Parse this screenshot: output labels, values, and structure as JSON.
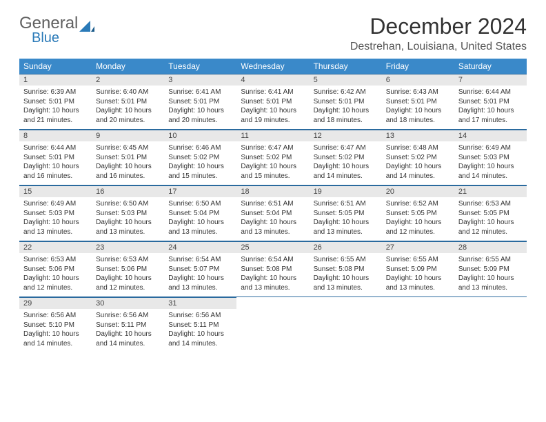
{
  "brand": {
    "part1": "General",
    "part2": "Blue"
  },
  "title": "December 2024",
  "location": "Destrehan, Louisiana, United States",
  "colors": {
    "header_bg": "#3a89c9",
    "header_text": "#ffffff",
    "daynum_bg": "#e8e8e8",
    "rule": "#2a6a9e",
    "body_text": "#333333"
  },
  "typography": {
    "title_fontsize": 32,
    "location_fontsize": 16,
    "header_fontsize": 12,
    "daynum_fontsize": 11,
    "body_fontsize": 10
  },
  "day_names": [
    "Sunday",
    "Monday",
    "Tuesday",
    "Wednesday",
    "Thursday",
    "Friday",
    "Saturday"
  ],
  "weeks": [
    [
      {
        "n": "1",
        "sunrise": "6:39 AM",
        "sunset": "5:01 PM",
        "daylight": "10 hours and 21 minutes."
      },
      {
        "n": "2",
        "sunrise": "6:40 AM",
        "sunset": "5:01 PM",
        "daylight": "10 hours and 20 minutes."
      },
      {
        "n": "3",
        "sunrise": "6:41 AM",
        "sunset": "5:01 PM",
        "daylight": "10 hours and 20 minutes."
      },
      {
        "n": "4",
        "sunrise": "6:41 AM",
        "sunset": "5:01 PM",
        "daylight": "10 hours and 19 minutes."
      },
      {
        "n": "5",
        "sunrise": "6:42 AM",
        "sunset": "5:01 PM",
        "daylight": "10 hours and 18 minutes."
      },
      {
        "n": "6",
        "sunrise": "6:43 AM",
        "sunset": "5:01 PM",
        "daylight": "10 hours and 18 minutes."
      },
      {
        "n": "7",
        "sunrise": "6:44 AM",
        "sunset": "5:01 PM",
        "daylight": "10 hours and 17 minutes."
      }
    ],
    [
      {
        "n": "8",
        "sunrise": "6:44 AM",
        "sunset": "5:01 PM",
        "daylight": "10 hours and 16 minutes."
      },
      {
        "n": "9",
        "sunrise": "6:45 AM",
        "sunset": "5:01 PM",
        "daylight": "10 hours and 16 minutes."
      },
      {
        "n": "10",
        "sunrise": "6:46 AM",
        "sunset": "5:02 PM",
        "daylight": "10 hours and 15 minutes."
      },
      {
        "n": "11",
        "sunrise": "6:47 AM",
        "sunset": "5:02 PM",
        "daylight": "10 hours and 15 minutes."
      },
      {
        "n": "12",
        "sunrise": "6:47 AM",
        "sunset": "5:02 PM",
        "daylight": "10 hours and 14 minutes."
      },
      {
        "n": "13",
        "sunrise": "6:48 AM",
        "sunset": "5:02 PM",
        "daylight": "10 hours and 14 minutes."
      },
      {
        "n": "14",
        "sunrise": "6:49 AM",
        "sunset": "5:03 PM",
        "daylight": "10 hours and 14 minutes."
      }
    ],
    [
      {
        "n": "15",
        "sunrise": "6:49 AM",
        "sunset": "5:03 PM",
        "daylight": "10 hours and 13 minutes."
      },
      {
        "n": "16",
        "sunrise": "6:50 AM",
        "sunset": "5:03 PM",
        "daylight": "10 hours and 13 minutes."
      },
      {
        "n": "17",
        "sunrise": "6:50 AM",
        "sunset": "5:04 PM",
        "daylight": "10 hours and 13 minutes."
      },
      {
        "n": "18",
        "sunrise": "6:51 AM",
        "sunset": "5:04 PM",
        "daylight": "10 hours and 13 minutes."
      },
      {
        "n": "19",
        "sunrise": "6:51 AM",
        "sunset": "5:05 PM",
        "daylight": "10 hours and 13 minutes."
      },
      {
        "n": "20",
        "sunrise": "6:52 AM",
        "sunset": "5:05 PM",
        "daylight": "10 hours and 12 minutes."
      },
      {
        "n": "21",
        "sunrise": "6:53 AM",
        "sunset": "5:05 PM",
        "daylight": "10 hours and 12 minutes."
      }
    ],
    [
      {
        "n": "22",
        "sunrise": "6:53 AM",
        "sunset": "5:06 PM",
        "daylight": "10 hours and 12 minutes."
      },
      {
        "n": "23",
        "sunrise": "6:53 AM",
        "sunset": "5:06 PM",
        "daylight": "10 hours and 12 minutes."
      },
      {
        "n": "24",
        "sunrise": "6:54 AM",
        "sunset": "5:07 PM",
        "daylight": "10 hours and 13 minutes."
      },
      {
        "n": "25",
        "sunrise": "6:54 AM",
        "sunset": "5:08 PM",
        "daylight": "10 hours and 13 minutes."
      },
      {
        "n": "26",
        "sunrise": "6:55 AM",
        "sunset": "5:08 PM",
        "daylight": "10 hours and 13 minutes."
      },
      {
        "n": "27",
        "sunrise": "6:55 AM",
        "sunset": "5:09 PM",
        "daylight": "10 hours and 13 minutes."
      },
      {
        "n": "28",
        "sunrise": "6:55 AM",
        "sunset": "5:09 PM",
        "daylight": "10 hours and 13 minutes."
      }
    ],
    [
      {
        "n": "29",
        "sunrise": "6:56 AM",
        "sunset": "5:10 PM",
        "daylight": "10 hours and 14 minutes."
      },
      {
        "n": "30",
        "sunrise": "6:56 AM",
        "sunset": "5:11 PM",
        "daylight": "10 hours and 14 minutes."
      },
      {
        "n": "31",
        "sunrise": "6:56 AM",
        "sunset": "5:11 PM",
        "daylight": "10 hours and 14 minutes."
      },
      null,
      null,
      null,
      null
    ]
  ]
}
